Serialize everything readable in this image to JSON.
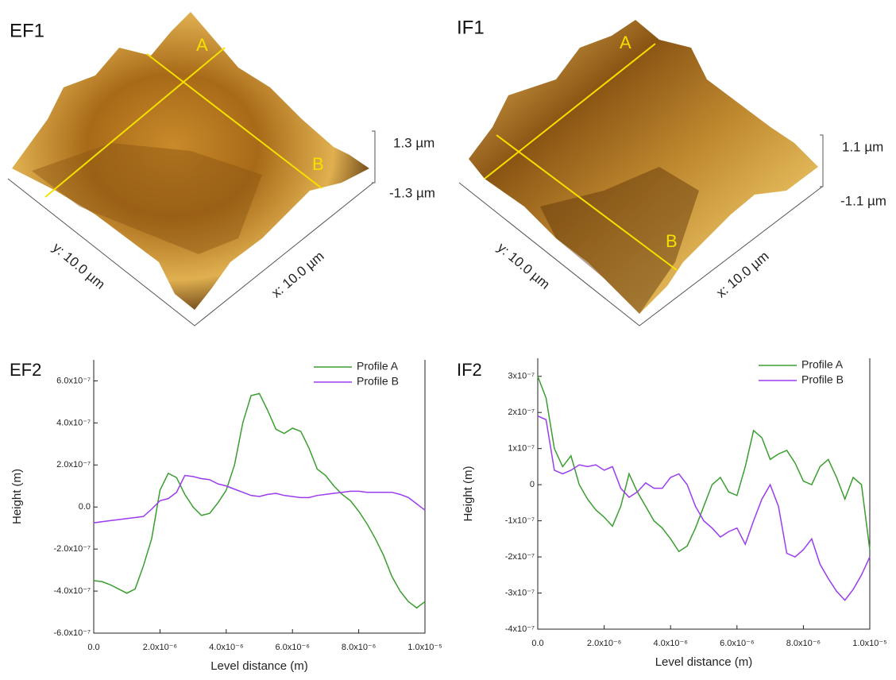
{
  "afm_images": [
    {
      "title": "EF1",
      "profile_labels": [
        "A",
        "B"
      ],
      "z_max": "1.3 µm",
      "z_min": "-1.3 µm",
      "y_axis": "y: 10.0 µm",
      "x_axis": "x: 10.0 µm"
    },
    {
      "title": "IF1",
      "profile_labels": [
        "A",
        "B"
      ],
      "z_max": "1.1 µm",
      "z_min": "-1.1 µm",
      "y_axis": "y: 10.0 µm",
      "x_axis": "x: 10.0 µm"
    }
  ],
  "chart_data": [
    {
      "type": "line",
      "title": "EF2",
      "x_label": "Level distance (m)",
      "y_label": "Height (m)",
      "legend": "upper right",
      "xlim": [
        0,
        1e-05
      ],
      "ylim": [
        -6e-07,
        7e-07
      ],
      "xticks": [
        {
          "value": 0,
          "label": "0.0"
        },
        {
          "value": 2e-06,
          "label": "2.0x10⁻⁶"
        },
        {
          "value": 4e-06,
          "label": "4.0x10⁻⁶"
        },
        {
          "value": 6e-06,
          "label": "6.0x10⁻⁶"
        },
        {
          "value": 8e-06,
          "label": "8.0x10⁻⁶"
        },
        {
          "value": 1e-05,
          "label": "1.0x10⁻⁵"
        }
      ],
      "yticks": [
        {
          "value": -6e-07,
          "label": "-6.0x10⁻⁷"
        },
        {
          "value": -4e-07,
          "label": "-4.0x10⁻⁷"
        },
        {
          "value": -2e-07,
          "label": "-2.0x10⁻⁷"
        },
        {
          "value": 0,
          "label": "0.0"
        },
        {
          "value": 2e-07,
          "label": "2.0x10⁻⁷"
        },
        {
          "value": 4e-07,
          "label": "4.0x10⁻⁷"
        },
        {
          "value": 6e-07,
          "label": "6.0x10⁻⁷"
        }
      ],
      "x": [
        0,
        2.5e-07,
        5e-07,
        7.5e-07,
        1e-06,
        1.25e-06,
        1.5e-06,
        1.75e-06,
        2e-06,
        2.25e-06,
        2.5e-06,
        2.75e-06,
        3e-06,
        3.25e-06,
        3.5e-06,
        3.75e-06,
        4e-06,
        4.25e-06,
        4.5e-06,
        4.75e-06,
        5e-06,
        5.25e-06,
        5.5e-06,
        5.75e-06,
        6e-06,
        6.25e-06,
        6.5e-06,
        6.75e-06,
        7e-06,
        7.25e-06,
        7.5e-06,
        7.75e-06,
        8e-06,
        8.25e-06,
        8.5e-06,
        8.75e-06,
        9e-06,
        9.25e-06,
        9.5e-06,
        9.75e-06,
        1e-05
      ],
      "series": [
        {
          "name": "Profile A",
          "color": "#3a9e2f",
          "values": [
            -3.5e-07,
            -3.55e-07,
            -3.7e-07,
            -3.9e-07,
            -4.1e-07,
            -3.9e-07,
            -2.8e-07,
            -1.5e-07,
            8e-08,
            1.6e-07,
            1.4e-07,
            6e-08,
            0,
            -4e-08,
            -3e-08,
            2e-08,
            8e-08,
            2e-07,
            4e-07,
            5.3e-07,
            5.4e-07,
            4.6e-07,
            3.7e-07,
            3.5e-07,
            3.75e-07,
            3.6e-07,
            2.8e-07,
            1.8e-07,
            1.5e-07,
            1e-07,
            6e-08,
            3e-08,
            -2e-08,
            -8e-08,
            -1.5e-07,
            -2.3e-07,
            -3.3e-07,
            -4e-07,
            -4.5e-07,
            -4.8e-07,
            -4.5e-07
          ]
        },
        {
          "name": "Profile B",
          "color": "#9b3cf0",
          "values": [
            -7.5e-08,
            -7e-08,
            -6.5e-08,
            -6e-08,
            -5.5e-08,
            -5e-08,
            -4.5e-08,
            -1e-08,
            3e-08,
            4e-08,
            7e-08,
            1.5e-07,
            1.45e-07,
            1.35e-07,
            1.3e-07,
            1.1e-07,
            1e-07,
            8.5e-08,
            7e-08,
            5.5e-08,
            5e-08,
            6e-08,
            6.5e-08,
            5.5e-08,
            5e-08,
            4.5e-08,
            4.5e-08,
            5.5e-08,
            6e-08,
            6.5e-08,
            7e-08,
            7.5e-08,
            7.5e-08,
            7e-08,
            7e-08,
            7e-08,
            7e-08,
            6e-08,
            4.5e-08,
            1.5e-08,
            -1.5e-08
          ]
        }
      ]
    },
    {
      "type": "line",
      "title": "IF2",
      "x_label": "Level distance (m)",
      "y_label": "Height (m)",
      "legend": "upper right",
      "xlim": [
        0,
        1e-05
      ],
      "ylim": [
        -4e-07,
        3.5e-07
      ],
      "xticks": [
        {
          "value": 0,
          "label": "0.0"
        },
        {
          "value": 2e-06,
          "label": "2.0x10⁻⁶"
        },
        {
          "value": 4e-06,
          "label": "4.0x10⁻⁶"
        },
        {
          "value": 6e-06,
          "label": "6.0x10⁻⁶"
        },
        {
          "value": 8e-06,
          "label": "8.0x10⁻⁶"
        },
        {
          "value": 1e-05,
          "label": "1.0x10⁻⁵"
        }
      ],
      "yticks": [
        {
          "value": -4e-07,
          "label": "-4x10⁻⁷"
        },
        {
          "value": -3e-07,
          "label": "-3x10⁻⁷"
        },
        {
          "value": -2e-07,
          "label": "-2x10⁻⁷"
        },
        {
          "value": -1e-07,
          "label": "-1x10⁻⁷"
        },
        0,
        {
          "value": 1e-07,
          "label": "1x10⁻⁷"
        },
        {
          "value": 2e-07,
          "label": "2x10⁻⁷"
        },
        {
          "value": 3e-07,
          "label": "3x10⁻⁷"
        }
      ],
      "x": [
        0,
        2.5e-07,
        5e-07,
        7.5e-07,
        1e-06,
        1.25e-06,
        1.5e-06,
        1.75e-06,
        2e-06,
        2.25e-06,
        2.5e-06,
        2.75e-06,
        3e-06,
        3.25e-06,
        3.5e-06,
        3.75e-06,
        4e-06,
        4.25e-06,
        4.5e-06,
        4.75e-06,
        5e-06,
        5.25e-06,
        5.5e-06,
        5.75e-06,
        6e-06,
        6.25e-06,
        6.5e-06,
        6.75e-06,
        7e-06,
        7.25e-06,
        7.5e-06,
        7.75e-06,
        8e-06,
        8.25e-06,
        8.5e-06,
        8.75e-06,
        9e-06,
        9.25e-06,
        9.5e-06,
        9.75e-06,
        1e-05
      ],
      "series": [
        {
          "name": "Profile A",
          "color": "#3a9e2f",
          "values": [
            3e-07,
            2.4e-07,
            1e-07,
            5e-08,
            8e-08,
            0,
            -4e-08,
            -7e-08,
            -9e-08,
            -1.15e-07,
            -6e-08,
            3e-08,
            -2e-08,
            -6e-08,
            -1e-07,
            -1.2e-07,
            -1.5e-07,
            -1.85e-07,
            -1.7e-07,
            -1.2e-07,
            -6e-08,
            0,
            2e-08,
            -2e-08,
            -3e-08,
            5e-08,
            1.5e-07,
            1.3e-07,
            7e-08,
            8.5e-08,
            9.5e-08,
            6e-08,
            1e-08,
            0,
            5e-08,
            7e-08,
            2e-08,
            -4e-08,
            2e-08,
            0,
            -1.8e-07
          ]
        },
        {
          "name": "Profile B",
          "color": "#9b3cf0",
          "values": [
            1.9e-07,
            1.8e-07,
            4e-08,
            3e-08,
            4e-08,
            5.5e-08,
            5e-08,
            5.5e-08,
            4e-08,
            5e-08,
            -1e-08,
            -3.5e-08,
            -2e-08,
            5e-09,
            -1e-08,
            -1e-08,
            2e-08,
            3e-08,
            0,
            -6e-08,
            -1e-07,
            -1.2e-07,
            -1.45e-07,
            -1.3e-07,
            -1.2e-07,
            -1.65e-07,
            -1e-07,
            -4e-08,
            0,
            -6e-08,
            -1.9e-07,
            -2e-07,
            -1.8e-07,
            -1.5e-07,
            -2.2e-07,
            -2.6e-07,
            -2.95e-07,
            -3.2e-07,
            -2.9e-07,
            -2.5e-07,
            -2e-07
          ]
        }
      ]
    }
  ]
}
